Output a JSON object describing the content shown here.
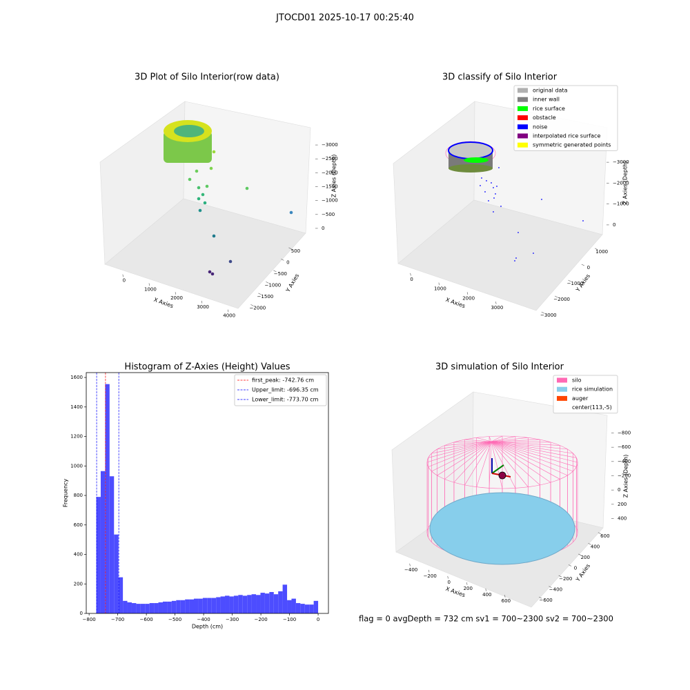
{
  "title": "JTOCD01 2025-10-17 00:25:40",
  "footer": "flag = 0     avgDepth = 732 cm  sv1 = 700~2300  sv2 = 700~2300",
  "chart_data": [
    {
      "type": "scatter3d",
      "title": "3D Plot of Silo Interior(row data)",
      "xlabel": "X Axies",
      "ylabel": "Y Axies",
      "zlabel": "Z Axies (Depth)",
      "xlim": [
        -600,
        4100
      ],
      "ylim": [
        -2200,
        800
      ],
      "zlim": [
        -3300,
        200
      ],
      "xticks": [
        0,
        1000,
        2000,
        3000,
        4000
      ],
      "yticks": [
        {
          "value": -2000,
          "label": "−2000"
        },
        {
          "value": -1500,
          "label": "−1500"
        },
        {
          "value": -1000,
          "label": "−1000"
        },
        {
          "value": -500,
          "label": "−500"
        },
        0,
        500
      ],
      "zticks": [
        {
          "value": -3000,
          "label": "−3000"
        },
        {
          "value": -2500,
          "label": "−2500"
        },
        {
          "value": -2000,
          "label": "−2000"
        },
        {
          "value": -1500,
          "label": "−1500"
        },
        {
          "value": -1000,
          "label": "−1000"
        },
        {
          "value": -500,
          "label": "−500"
        },
        0
      ]
    },
    {
      "type": "scatter3d",
      "title": "3D classify of Silo Interior",
      "xlabel": "X Axies",
      "ylabel": "Y Axies",
      "zlabel": "Z Axies (Depth)",
      "xlim": [
        -500,
        3500
      ],
      "ylim": [
        -3300,
        1300
      ],
      "zlim": [
        -3500,
        300
      ],
      "xticks": [
        0,
        1000,
        2000,
        3000
      ],
      "yticks": [
        {
          "value": -3000,
          "label": "−3000"
        },
        {
          "value": -2000,
          "label": "−2000"
        },
        {
          "value": -1000,
          "label": "−1000"
        },
        0,
        1000
      ],
      "zticks": [
        {
          "value": -3000,
          "label": "−3000"
        },
        {
          "value": -2000,
          "label": "−2000"
        },
        {
          "value": -1000,
          "label": "−1000"
        },
        0
      ],
      "legend": [
        {
          "name": "original data",
          "color": "#b0b0b0"
        },
        {
          "name": "inner wall",
          "color": "#808080"
        },
        {
          "name": "rice surface",
          "color": "#00ff00"
        },
        {
          "name": "obstacle",
          "color": "#ff0000"
        },
        {
          "name": "noise",
          "color": "#0000ff"
        },
        {
          "name": "interpolated rice surface",
          "color": "#800080"
        },
        {
          "name": "symmetric generated points",
          "color": "#ffff00"
        }
      ]
    },
    {
      "type": "histogram",
      "title": "Histogram of Z-Axies (Height) Values",
      "xlabel": "Depth (cm)",
      "ylabel": "Frequency",
      "color": "#4d4dff",
      "bins": [
        -775,
        -759.5,
        -744,
        -728.5,
        -713,
        -697.5,
        -682,
        -666.5,
        -651,
        -635.5,
        -620,
        -604.5,
        -589,
        -573.5,
        -558,
        -542.5,
        -527,
        -511.5,
        -496,
        -480.5,
        -465,
        -449.5,
        -434,
        -418.5,
        -403,
        -387.5,
        -372,
        -356.5,
        -341,
        -325.5,
        -310,
        -294.5,
        -279,
        -263.5,
        -248,
        -232.5,
        -217,
        -201.5,
        -186,
        -170.5,
        -155,
        -139.5,
        -124,
        -108.5,
        -93,
        -77.5,
        -62,
        -46.5,
        -31,
        -15.5,
        0
      ],
      "counts": [
        790,
        965,
        1555,
        930,
        535,
        245,
        85,
        75,
        70,
        65,
        65,
        65,
        70,
        70,
        75,
        80,
        80,
        85,
        90,
        90,
        95,
        95,
        100,
        100,
        105,
        105,
        105,
        110,
        115,
        120,
        115,
        120,
        125,
        120,
        125,
        130,
        125,
        140,
        135,
        145,
        130,
        150,
        195,
        90,
        100,
        70,
        65,
        60,
        60,
        85
      ],
      "xlim": [
        -810,
        36
      ],
      "ylim": [
        0,
        1633
      ],
      "xticks": [
        {
          "value": -800,
          "label": "−800"
        },
        {
          "value": -700,
          "label": "−700"
        },
        {
          "value": -600,
          "label": "−600"
        },
        {
          "value": -500,
          "label": "−500"
        },
        {
          "value": -400,
          "label": "−400"
        },
        {
          "value": -300,
          "label": "−300"
        },
        {
          "value": -200,
          "label": "−200"
        },
        {
          "value": -100,
          "label": "−100"
        },
        0
      ],
      "yticks": [
        0,
        200,
        400,
        600,
        800,
        1000,
        1200,
        1400,
        1600
      ],
      "lines": [
        {
          "label": "first_peak: -742.76 cm",
          "value": -742.76,
          "color": "#ff0000"
        },
        {
          "label": "Upper_limit: -696.35 cm",
          "value": -696.35,
          "color": "#0000ff"
        },
        {
          "label": "Lower_limit: -773.70 cm",
          "value": -773.7,
          "color": "#0000ff"
        }
      ],
      "legend": "upper right"
    },
    {
      "type": "scatter3d",
      "title": "3D simulation of Silo Interior",
      "xlabel": "X Axies",
      "ylabel": "Y Axies",
      "zlabel": "Z Axies (Depth)",
      "xlim": [
        -550,
        750
      ],
      "ylim": [
        -700,
        700
      ],
      "zlim": [
        -950,
        550
      ],
      "xticks": [
        {
          "value": -400,
          "label": "−400"
        },
        {
          "value": -200,
          "label": "−200"
        },
        0,
        200,
        400,
        600
      ],
      "yticks": [
        {
          "value": -600,
          "label": "−600"
        },
        {
          "value": -400,
          "label": "−400"
        },
        {
          "value": -200,
          "label": "−200"
        },
        0,
        200,
        400,
        600
      ],
      "zticks": [
        {
          "value": -800,
          "label": "−800"
        },
        {
          "value": -600,
          "label": "−600"
        },
        {
          "value": -400,
          "label": "−400"
        },
        {
          "value": -200,
          "label": "−200"
        },
        0,
        200,
        400
      ],
      "legend": [
        {
          "name": "silo",
          "color": "#ff69b4"
        },
        {
          "name": "rice simulation",
          "color": "#87ceeb"
        },
        {
          "name": "auger",
          "color": "#ff4500"
        },
        {
          "name": "center(113,-5)",
          "color": "#ffffff"
        }
      ]
    }
  ]
}
